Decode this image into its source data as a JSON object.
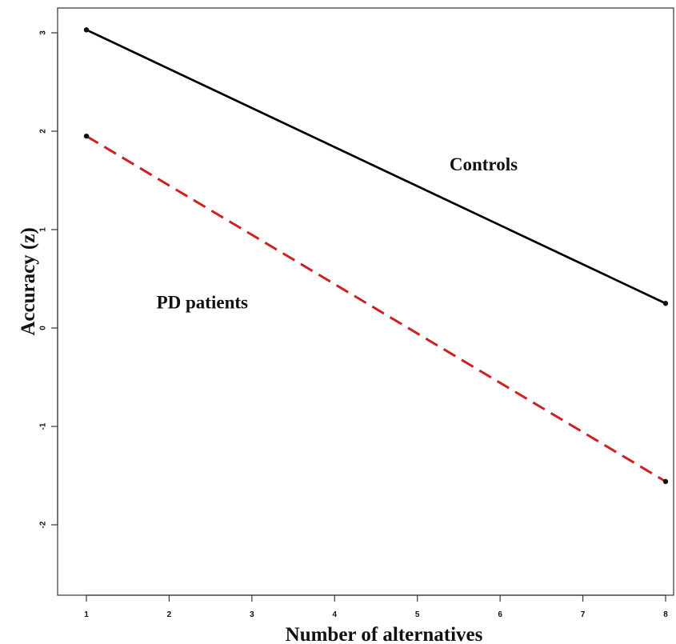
{
  "chart_data": {
    "type": "line",
    "xlabel": "Number of alternatives",
    "ylabel": "Accuracy (z)",
    "xlim": [
      1,
      8
    ],
    "ylim": [
      -2.7,
      3.3
    ],
    "xticks": [
      "1",
      "2",
      "3",
      "4",
      "5",
      "6",
      "7",
      "8"
    ],
    "yticks": [
      "-2",
      "-1",
      "0",
      "1",
      "2",
      "3"
    ],
    "grid": false,
    "series": [
      {
        "name": "Controls",
        "x": [
          1,
          8
        ],
        "y": [
          3.03,
          0.25
        ],
        "color": "#000000",
        "line_style": "solid"
      },
      {
        "name": "PD patients",
        "x": [
          1,
          8
        ],
        "y": [
          1.95,
          -1.56
        ],
        "color": "#cc2222",
        "line_style": "dashed"
      }
    ],
    "annotations": [
      {
        "text": "Controls",
        "x": 5.8,
        "y": 1.6
      },
      {
        "text": "PD patients",
        "x": 2.4,
        "y": 0.2
      }
    ]
  }
}
